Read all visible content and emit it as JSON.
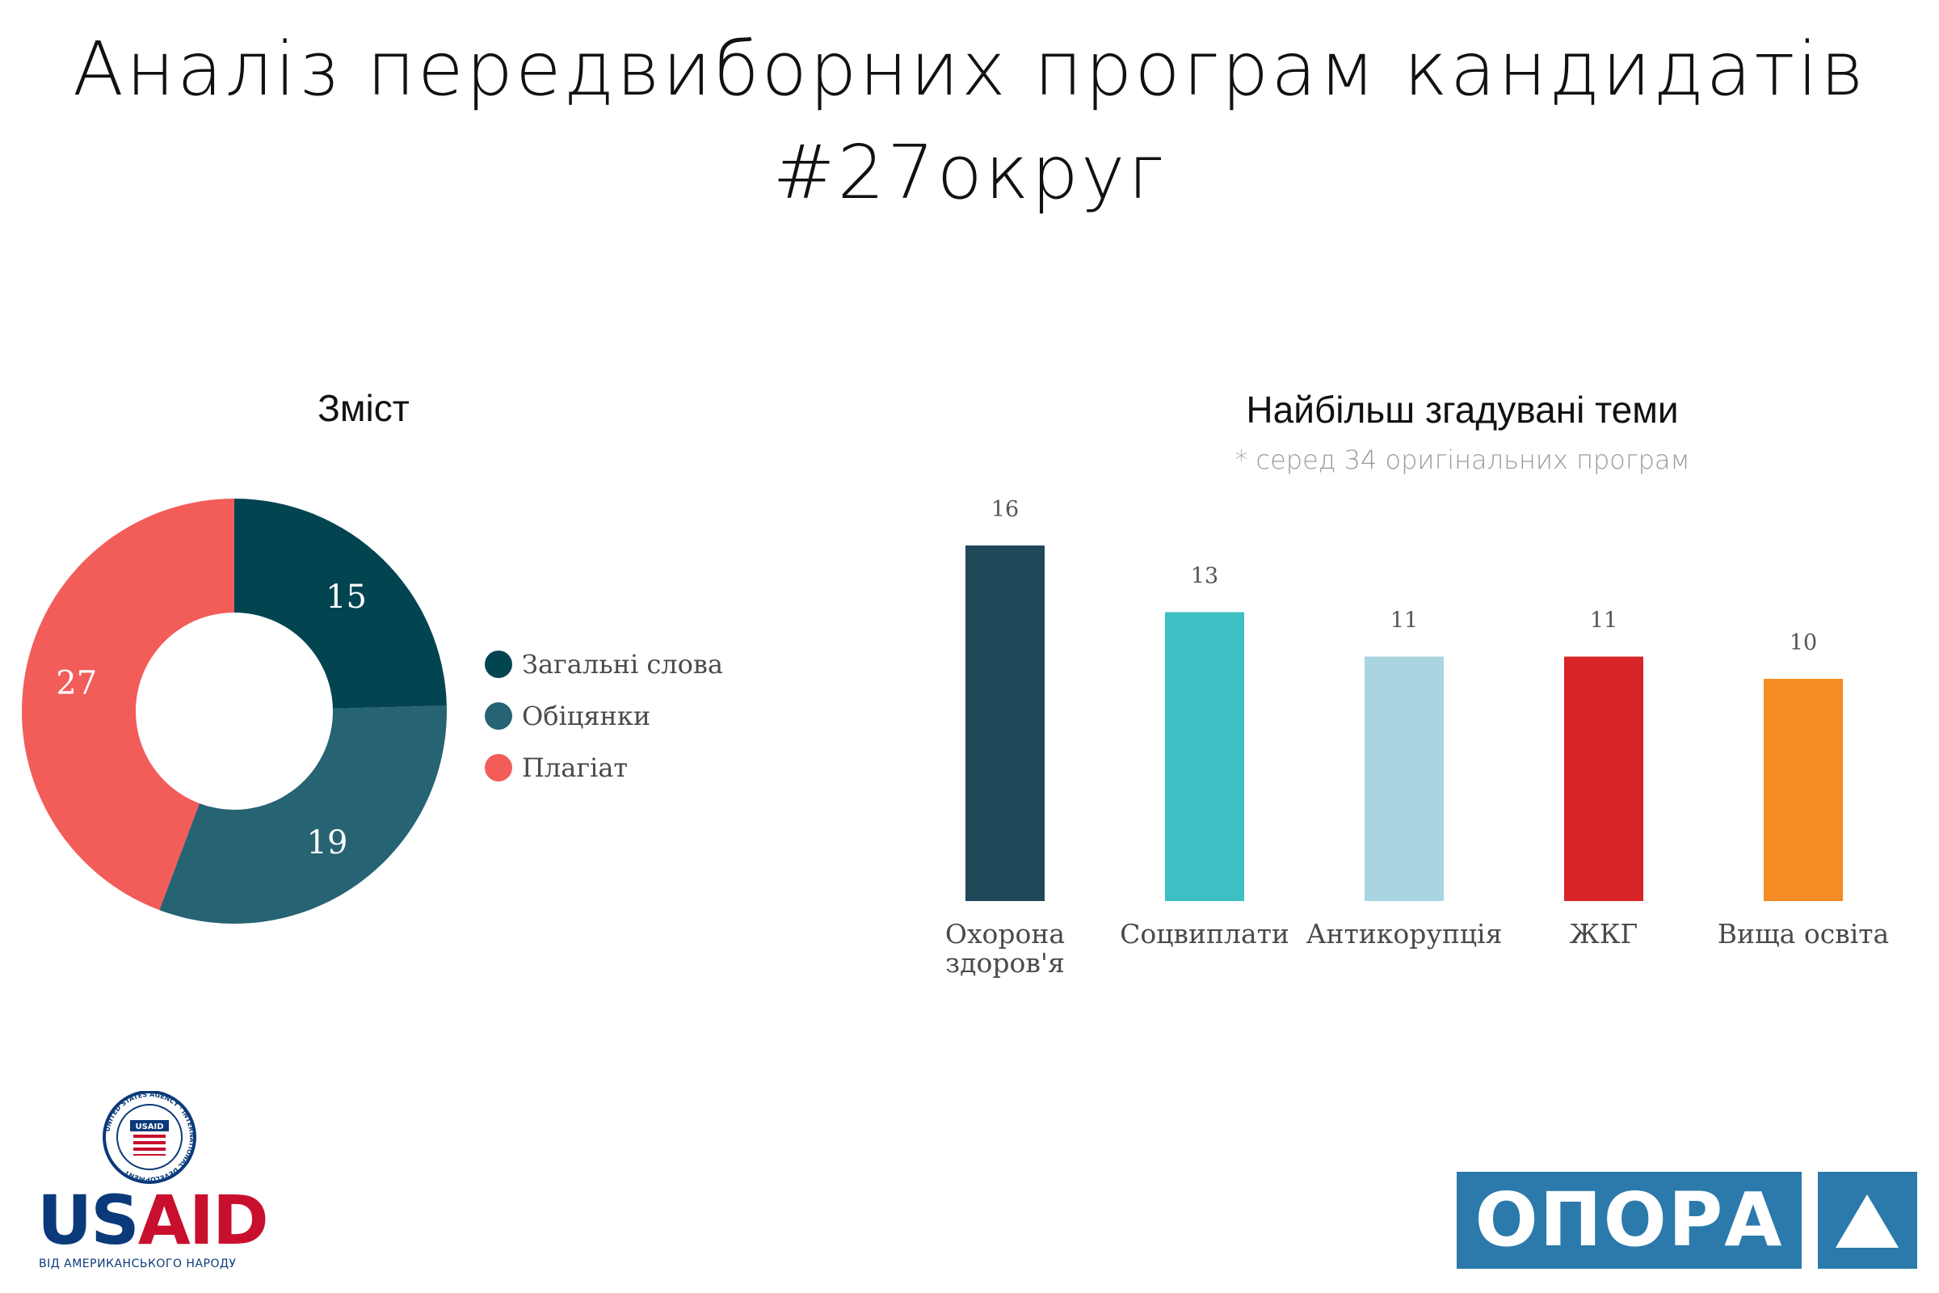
{
  "page": {
    "title_line1": "Аналіз передвиборних програм кандидатів",
    "title_line2": "#27округ"
  },
  "chart_data": [
    {
      "type": "pie",
      "title": "Зміст",
      "donut": true,
      "legend_position": "right",
      "series": [
        {
          "name": "Загальні слова",
          "value": 15,
          "color": "#034451"
        },
        {
          "name": "Обіцянки",
          "value": 19,
          "color": "#266373"
        },
        {
          "name": "Плагіат",
          "value": 27,
          "color": "#f25c59"
        }
      ]
    },
    {
      "type": "bar",
      "title": "Найбільш згадувані теми",
      "subtitle": "* серед 34 оригінальних програм",
      "categories": [
        "Охорона здоров'я",
        "Соцвиплати",
        "Антикорупція",
        "ЖКГ",
        "Вища освіта"
      ],
      "values": [
        16,
        13,
        11,
        11,
        10
      ],
      "colors": [
        "#1f4859",
        "#3cc0c3",
        "#a8d5e0",
        "#d62427",
        "#f58b25"
      ],
      "ylim": [
        0,
        16
      ],
      "grid": false
    }
  ],
  "logos": {
    "usaid_us": "US",
    "usaid_aid": "AID",
    "usaid_tagline": "ВІД АМЕРИКАНСЬКОГО НАРОДУ",
    "usaid_seal_ring": "UNITED STATES AGENCY · INTERNATIONAL DEVELOPMENT",
    "usaid_seal_banner": "USAID",
    "opora_word": "ОПОРА",
    "opora_icon": "triangle-icon"
  }
}
